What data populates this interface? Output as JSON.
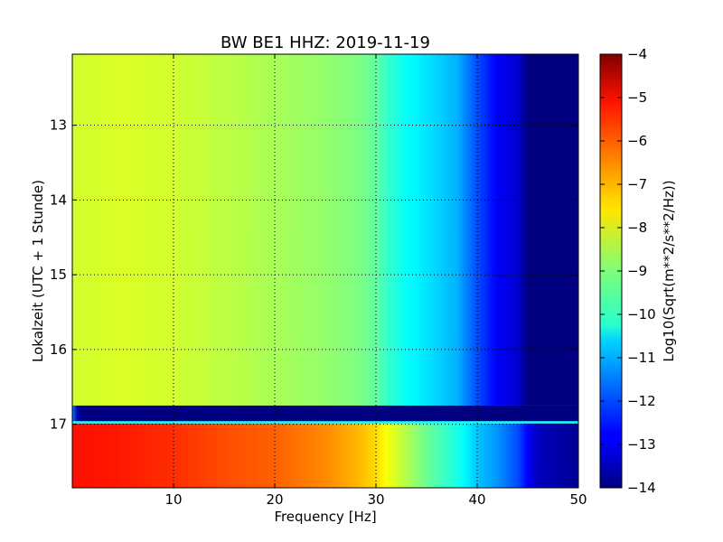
{
  "chart_data": {
    "type": "heatmap",
    "title": "BW BE1 HHZ: 2019-11-19",
    "xlabel": "Frequency [Hz]",
    "ylabel": "Lokalzeit (UTC + 1 Stunde)",
    "colorbar_label": "Log10(Sqrt(m**2/s**2/Hz))",
    "colormap": "jet",
    "grid": true,
    "xlim": [
      0,
      50
    ],
    "ylim": [
      12.05,
      17.85
    ],
    "y_inverted": true,
    "color_range": [
      -14,
      -4
    ],
    "x_ticks": [
      10,
      20,
      30,
      40,
      50
    ],
    "x_tick_labels": [
      "10",
      "20",
      "30",
      "40",
      "50"
    ],
    "y_ticks": [
      13,
      14,
      15,
      16,
      17
    ],
    "y_tick_labels": [
      "13",
      "14",
      "15",
      "16",
      "17"
    ],
    "colorbar_ticks": [
      -4,
      -5,
      -6,
      -7,
      -8,
      -9,
      -10,
      -11,
      -12,
      -13,
      -14
    ],
    "colorbar_tick_labels": [
      "−4",
      "−5",
      "−6",
      "−7",
      "−8",
      "−9",
      "−10",
      "−11",
      "−12",
      "−13",
      "−14"
    ],
    "segments": [
      {
        "time_range": [
          12.05,
          16.75
        ],
        "spectrum_freq_hz": [
          0,
          5,
          10,
          15,
          20,
          25,
          28,
          30,
          31,
          33,
          35,
          38,
          40,
          42,
          44,
          45,
          46,
          50
        ],
        "spectrum_level": [
          -8.2,
          -8.1,
          -8.2,
          -8.4,
          -8.6,
          -8.8,
          -9.0,
          -9.3,
          -9.7,
          -10.2,
          -10.5,
          -11.0,
          -12.0,
          -12.8,
          -13.2,
          -14.0,
          -14.0,
          -14.0
        ]
      },
      {
        "time_range": [
          16.75,
          16.96
        ],
        "spectrum_freq_hz": [
          0,
          0.5,
          1,
          50
        ],
        "spectrum_level": [
          -11.5,
          -13.5,
          -14.0,
          -14.0
        ]
      },
      {
        "time_range": [
          16.96,
          16.99
        ],
        "spectrum_freq_hz": [
          0,
          50
        ],
        "spectrum_level": [
          -10.2,
          -10.2
        ]
      },
      {
        "time_range": [
          16.99,
          17.85
        ],
        "spectrum_freq_hz": [
          0,
          5,
          10,
          15,
          20,
          25,
          28,
          30,
          31,
          33,
          35,
          38,
          40,
          42,
          44,
          45,
          46,
          50
        ],
        "spectrum_level": [
          -5.4,
          -5.5,
          -5.7,
          -6.0,
          -6.2,
          -6.6,
          -7.0,
          -7.4,
          -7.8,
          -8.5,
          -9.2,
          -10.0,
          -10.8,
          -11.3,
          -12.0,
          -12.8,
          -13.4,
          -13.8
        ]
      }
    ]
  }
}
